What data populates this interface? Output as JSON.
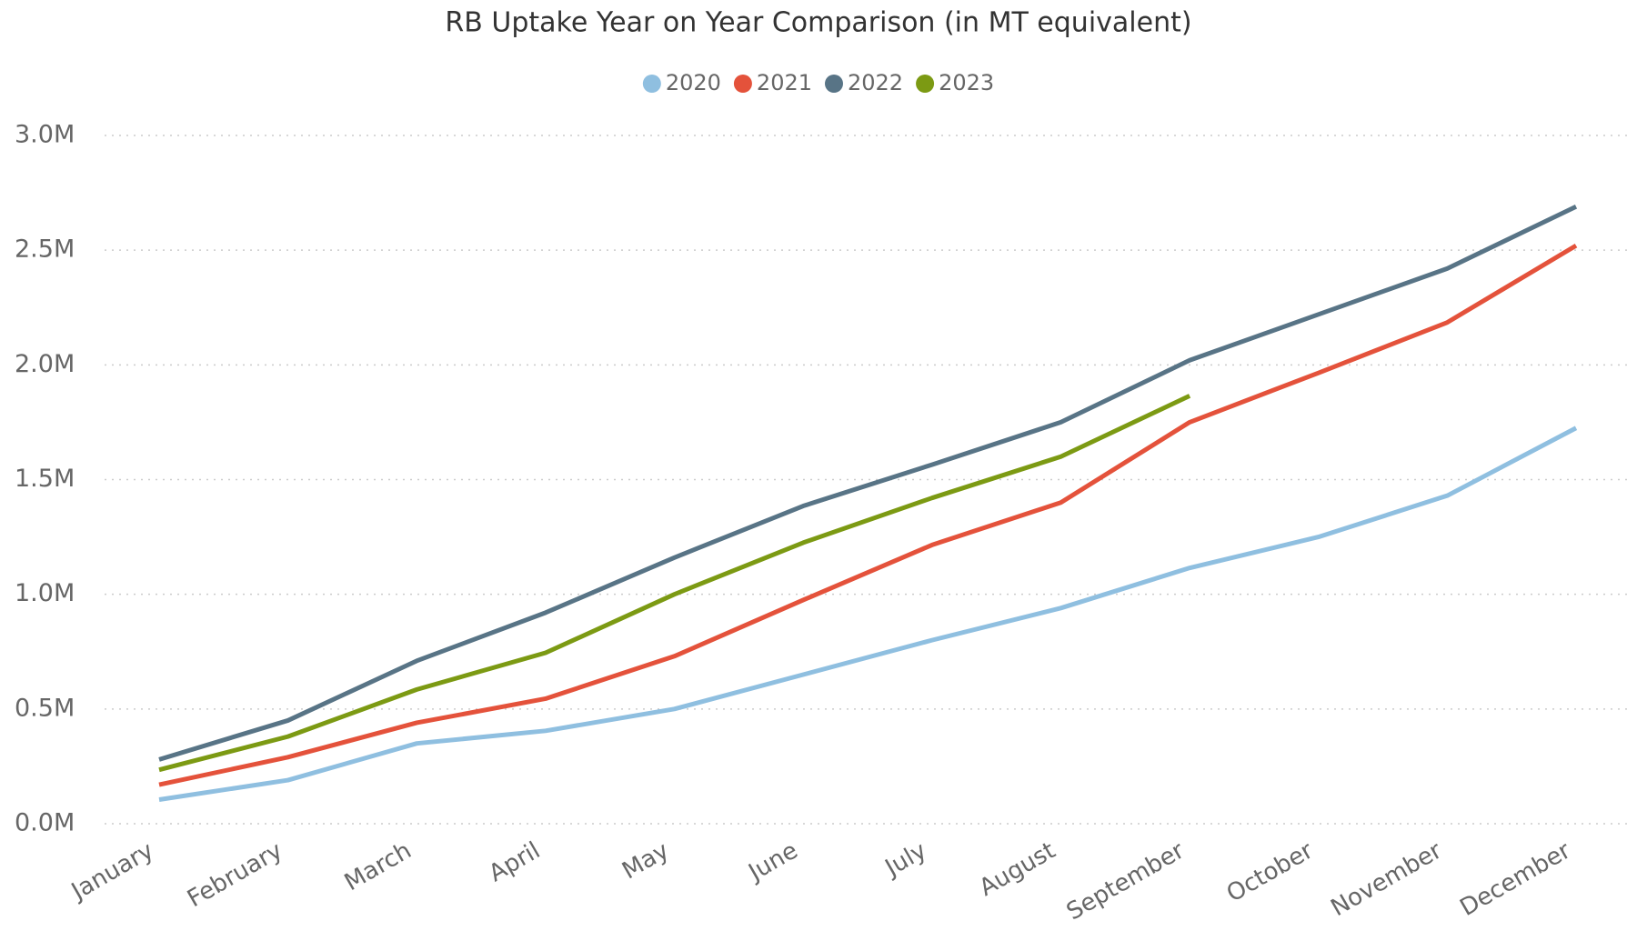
{
  "chart_data": {
    "type": "line",
    "title": "RB Uptake Year on Year Comparison (in MT equivalent)",
    "categories": [
      "January",
      "February",
      "March",
      "April",
      "May",
      "June",
      "July",
      "August",
      "September",
      "October",
      "November",
      "December"
    ],
    "series": [
      {
        "name": "2020",
        "color": "#8fbfe0",
        "values": [
          105000,
          190000,
          350000,
          405000,
          500000,
          650000,
          800000,
          940000,
          1115000,
          1250000,
          1430000,
          1725000
        ]
      },
      {
        "name": "2021",
        "color": "#e4523b",
        "values": [
          170000,
          290000,
          440000,
          545000,
          730000,
          975000,
          1215000,
          1400000,
          1750000,
          1965000,
          2185000,
          2520000
        ]
      },
      {
        "name": "2022",
        "color": "#587486",
        "values": [
          280000,
          450000,
          710000,
          920000,
          1160000,
          1385000,
          1565000,
          1750000,
          2020000,
          2220000,
          2420000,
          2690000
        ]
      },
      {
        "name": "2023",
        "color": "#7c9a13",
        "values": [
          235000,
          380000,
          585000,
          745000,
          1000000,
          1225000,
          1420000,
          1600000,
          1865000,
          null,
          null,
          null
        ]
      }
    ],
    "ylim": [
      0,
      3000000
    ],
    "yticks": [
      {
        "value": 0,
        "label": "0.0M"
      },
      {
        "value": 500000,
        "label": "0.5M"
      },
      {
        "value": 1000000,
        "label": "1.0M"
      },
      {
        "value": 1500000,
        "label": "1.5M"
      },
      {
        "value": 2000000,
        "label": "2.0M"
      },
      {
        "value": 2500000,
        "label": "2.5M"
      },
      {
        "value": 3000000,
        "label": "3.0M"
      }
    ],
    "grid": true,
    "legend": "top"
  }
}
